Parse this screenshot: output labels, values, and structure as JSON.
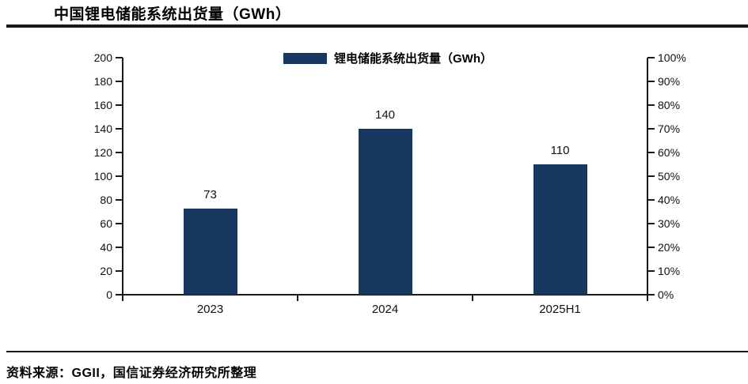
{
  "title": "中国锂电储能系统出货量（GWh）",
  "legend": {
    "label": "锂电储能系统出货量（GWh）",
    "swatch_color": "#17375e",
    "swatch_icon": "legend-bar-swatch"
  },
  "source": "资料来源：GGII，国信证券经济研究所整理",
  "chart_data": {
    "type": "bar",
    "title": "中国锂电储能系统出货量（GWh）",
    "categories": [
      "2023",
      "2024",
      "2025H1"
    ],
    "series": [
      {
        "name": "锂电储能系统出货量（GWh）",
        "values": [
          73,
          140,
          110
        ]
      }
    ],
    "data_labels": [
      "73",
      "140",
      "110"
    ],
    "bar_color": "#17375e",
    "grid": false,
    "legend_position": "top-center",
    "left_axis": {
      "min": 0,
      "max": 200,
      "step": 20,
      "tick_labels": [
        "0",
        "20",
        "40",
        "60",
        "80",
        "100",
        "120",
        "140",
        "160",
        "180",
        "200"
      ]
    },
    "right_axis": {
      "min": 0,
      "max": 100,
      "step": 10,
      "tick_labels": [
        "0%",
        "10%",
        "20%",
        "30%",
        "40%",
        "50%",
        "60%",
        "70%",
        "80%",
        "90%",
        "100%"
      ]
    }
  }
}
